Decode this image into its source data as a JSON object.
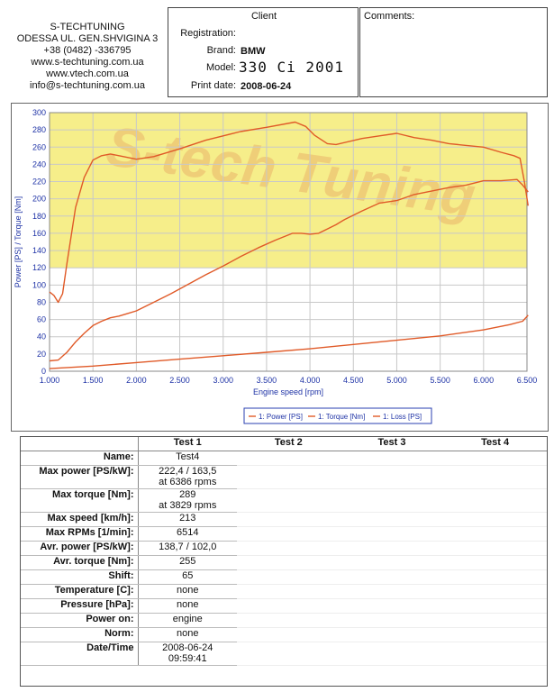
{
  "company": {
    "lines": [
      "S-TECHTUNING",
      "ODESSA UL. GEN.SHVIGINA 3",
      "+38 (0482) -336795",
      "www.s-techtuning.com.ua",
      "www.vtech.com.ua",
      "info@s-techtuning.com.ua"
    ]
  },
  "client": {
    "heading": "Client",
    "registration_label": "Registration:",
    "registration_value": "",
    "brand_label": "Brand:",
    "brand_value": "BMW",
    "model_label": "Model:",
    "model_value": "330 Ci 2001",
    "print_date_label": "Print date:",
    "print_date_value": "2008-06-24"
  },
  "comments": {
    "heading": "Comments:"
  },
  "watermark": "S-tech Tuning",
  "colors": {
    "curve": "#e05a28",
    "axis_text": "#1f33a6",
    "grid": "#c8c8c8",
    "band": "#f6ee8a"
  },
  "chart_data": {
    "type": "line",
    "xlabel": "Engine speed [rpm]",
    "ylabel": "Power [PS] / Torque [Nm]",
    "xlim": [
      1000,
      6500
    ],
    "ylim": [
      0,
      300
    ],
    "x_ticks": [
      "1.000",
      "1.500",
      "2.000",
      "2.500",
      "3.000",
      "3.500",
      "4.000",
      "4.500",
      "5.000",
      "5.500",
      "6.000",
      "6.500"
    ],
    "y_ticks": [
      "0",
      "20",
      "40",
      "60",
      "80",
      "100",
      "120",
      "140",
      "160",
      "180",
      "200",
      "220",
      "240",
      "260",
      "280",
      "300"
    ],
    "grid": true,
    "legend_position": "bottom-right",
    "series": [
      {
        "name": "1: Power [PS]",
        "x": [
          1000,
          1100,
          1200,
          1300,
          1400,
          1500,
          1600,
          1700,
          1800,
          1900,
          2000,
          2200,
          2400,
          2600,
          2800,
          3000,
          3200,
          3400,
          3600,
          3800,
          3900,
          4000,
          4100,
          4200,
          4300,
          4400,
          4600,
          4800,
          5000,
          5200,
          5400,
          5600,
          5800,
          6000,
          6200,
          6386,
          6450,
          6514
        ],
        "values": [
          12,
          13,
          22,
          34,
          44,
          53,
          58,
          62,
          64,
          67,
          70,
          80,
          90,
          101,
          112,
          122,
          133,
          143,
          152,
          160,
          160,
          159,
          160,
          165,
          170,
          176,
          186,
          195,
          198,
          205,
          209,
          213,
          216,
          221,
          221,
          222.4,
          216,
          208
        ]
      },
      {
        "name": "1: Torque [Nm]",
        "x": [
          1000,
          1050,
          1100,
          1150,
          1200,
          1300,
          1400,
          1500,
          1600,
          1700,
          1800,
          2000,
          2200,
          2500,
          2800,
          3000,
          3200,
          3500,
          3829,
          3950,
          4050,
          4200,
          4300,
          4600,
          4800,
          5000,
          5200,
          5400,
          5600,
          5800,
          6000,
          6200,
          6350,
          6420,
          6470,
          6514
        ],
        "values": [
          92,
          88,
          80,
          90,
          125,
          190,
          225,
          245,
          250,
          252,
          250,
          246,
          249,
          258,
          268,
          273,
          278,
          283,
          289,
          284,
          274,
          264,
          263,
          270,
          273,
          276,
          271,
          268,
          264,
          262,
          260,
          254,
          250,
          247,
          220,
          192
        ]
      },
      {
        "name": "1: Loss [PS]",
        "x": [
          1000,
          1500,
          2000,
          2500,
          3000,
          3500,
          4000,
          4500,
          5000,
          5500,
          6000,
          6300,
          6450,
          6514
        ],
        "values": [
          3,
          6,
          10,
          14,
          18,
          22,
          26,
          31,
          36,
          41,
          48,
          54,
          58,
          65
        ]
      }
    ]
  },
  "results": {
    "columns": [
      "Test 1",
      "Test 2",
      "Test 3",
      "Test 4"
    ],
    "rows": [
      {
        "label": "Name:",
        "value": [
          "Test4"
        ]
      },
      {
        "label": "Max power [PS/kW]:",
        "value": [
          "222,4 / 163,5",
          "at 6386 rpms"
        ]
      },
      {
        "label": "Max torque [Nm]:",
        "value": [
          "289",
          "at 3829 rpms"
        ]
      },
      {
        "label": "Max speed [km/h]:",
        "value": [
          "213"
        ]
      },
      {
        "label": "Max RPMs [1/min]:",
        "value": [
          "6514"
        ]
      },
      {
        "label": "Avr. power [PS/kW]:",
        "value": [
          "138,7 / 102,0"
        ]
      },
      {
        "label": "Avr. torque [Nm]:",
        "value": [
          "255"
        ]
      },
      {
        "label": "Shift:",
        "value": [
          "65"
        ]
      },
      {
        "label": "Temperature [C]:",
        "value": [
          "none"
        ]
      },
      {
        "label": "Pressure [hPa]:",
        "value": [
          "none"
        ]
      },
      {
        "label": "Power on:",
        "value": [
          "engine"
        ]
      },
      {
        "label": "Norm:",
        "value": [
          "none"
        ]
      },
      {
        "label": "Date/Time",
        "value": [
          "2008-06-24",
          "09:59:41"
        ]
      }
    ]
  }
}
